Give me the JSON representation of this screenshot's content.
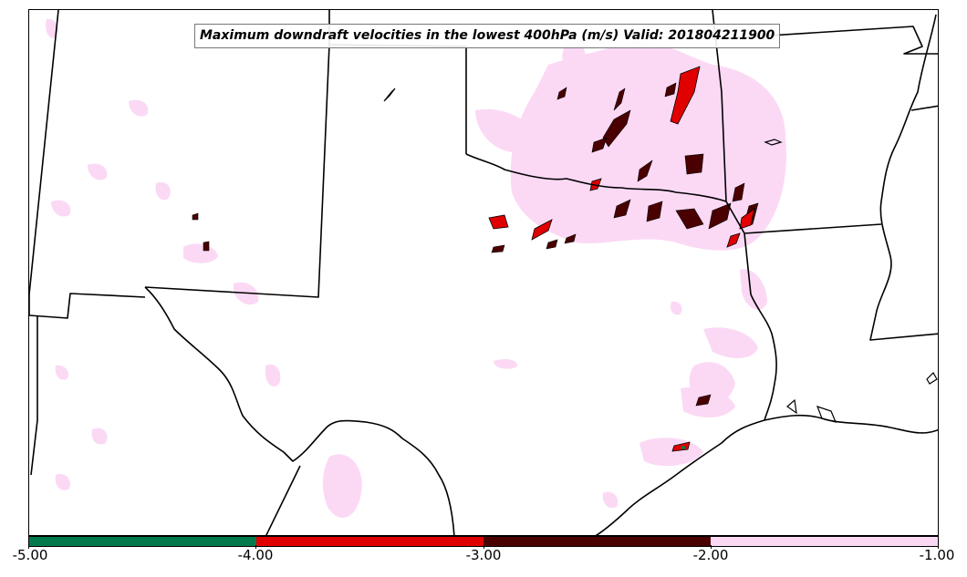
{
  "title": "Maximum downdraft velocities in the lowest 400hPa (m/s) Valid: 201804211900",
  "colorbar": {
    "ticks": [
      "-5.00",
      "-4.00",
      "-3.00",
      "-2.00",
      "-1.00"
    ],
    "bins": [
      {
        "min": -5,
        "max": -4,
        "color": "#007a4d"
      },
      {
        "min": -4,
        "max": -3,
        "color": "#e00000"
      },
      {
        "min": -3,
        "max": -2,
        "color": "#4a0000"
      },
      {
        "min": -2,
        "max": -1,
        "color": "#fbd9f5"
      }
    ]
  }
}
